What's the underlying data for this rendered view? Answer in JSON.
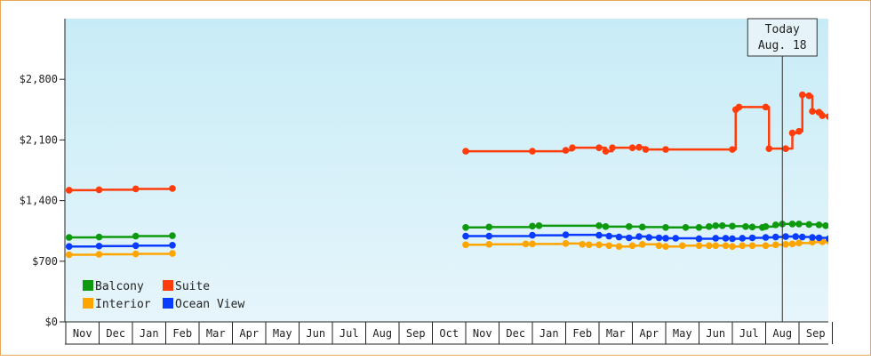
{
  "chart_data": {
    "type": "line",
    "title": "",
    "xlabel": "",
    "ylabel": "",
    "ylim": [
      0,
      3500
    ],
    "yticks": [
      0,
      700,
      1400,
      2100,
      2800
    ],
    "ytick_labels": [
      "$0",
      "$700",
      "$1,400",
      "$2,100",
      "$2,800"
    ],
    "x_labels": [
      "Nov",
      "Dec",
      "Jan",
      "Feb",
      "Mar",
      "Apr",
      "May",
      "Jun",
      "Jul",
      "Aug",
      "Sep",
      "Oct",
      "Nov",
      "Dec",
      "Jan",
      "Feb",
      "Mar",
      "Apr",
      "May",
      "Jun",
      "Jul",
      "Aug",
      "Sep"
    ],
    "today": {
      "line1": "Today",
      "line2": "Aug. 18",
      "x": 21.5
    },
    "grid": false,
    "legend_position": "bottom-left",
    "background_colors": [
      "#c8ecf7",
      "#e6f5fb"
    ],
    "series": [
      {
        "name": "Balcony",
        "color": "#0e9a0e",
        "segments": [
          [
            [
              0.1,
              975
            ],
            [
              1.0,
              980
            ],
            [
              2.1,
              990
            ],
            [
              3.2,
              995
            ]
          ],
          [
            [
              12.0,
              1090
            ],
            [
              12.7,
              1095
            ],
            [
              14.0,
              1105
            ],
            [
              14.2,
              1110
            ],
            [
              16.0,
              1110
            ],
            [
              16.2,
              1100
            ],
            [
              16.9,
              1100
            ],
            [
              17.3,
              1095
            ],
            [
              18.0,
              1090
            ],
            [
              18.6,
              1090
            ],
            [
              19.0,
              1090
            ],
            [
              19.3,
              1100
            ],
            [
              19.5,
              1110
            ],
            [
              19.7,
              1110
            ],
            [
              20.0,
              1105
            ],
            [
              20.4,
              1100
            ],
            [
              20.6,
              1095
            ],
            [
              20.9,
              1090
            ],
            [
              21.0,
              1100
            ],
            [
              21.3,
              1120
            ],
            [
              21.5,
              1130
            ],
            [
              21.8,
              1130
            ],
            [
              22.0,
              1130
            ],
            [
              22.3,
              1125
            ],
            [
              22.6,
              1120
            ],
            [
              22.8,
              1110
            ],
            [
              23.0,
              1085
            ],
            [
              23.3,
              1080
            ],
            [
              23.5,
              1080
            ]
          ]
        ],
        "projection": [
          [
            23.5,
            1080
          ],
          [
            25.0,
            1110
          ]
        ]
      },
      {
        "name": "Suite",
        "color": "#ff3c0a",
        "segments": [
          [
            [
              0.1,
              1520
            ],
            [
              1.0,
              1525
            ],
            [
              2.1,
              1535
            ],
            [
              3.2,
              1540
            ]
          ],
          [
            [
              12.0,
              1970
            ],
            [
              14.0,
              1970
            ],
            [
              15.0,
              1980
            ],
            [
              15.2,
              2010
            ],
            [
              16.0,
              2010
            ],
            [
              16.2,
              1970
            ],
            [
              16.4,
              2010
            ],
            [
              17.0,
              2010
            ],
            [
              17.2,
              2015
            ],
            [
              17.4,
              1990
            ],
            [
              18.0,
              1990
            ],
            [
              20.0,
              1990
            ],
            [
              20.1,
              2450
            ],
            [
              20.2,
              2480
            ],
            [
              21.0,
              2480
            ],
            [
              21.1,
              2000
            ],
            [
              21.6,
              2000
            ],
            [
              21.8,
              2180
            ],
            [
              22.0,
              2200
            ],
            [
              22.1,
              2620
            ],
            [
              22.3,
              2610
            ],
            [
              22.4,
              2430
            ],
            [
              22.6,
              2420
            ],
            [
              22.7,
              2380
            ],
            [
              22.9,
              2370
            ],
            [
              23.0,
              2380
            ]
          ]
        ],
        "projection": [
          [
            23.0,
            2380
          ],
          [
            25.0,
            2700
          ]
        ]
      },
      {
        "name": "Interior",
        "color": "#ffa500",
        "segments": [
          [
            [
              0.1,
              775
            ],
            [
              1.0,
              780
            ],
            [
              2.1,
              785
            ],
            [
              3.2,
              790
            ]
          ],
          [
            [
              12.0,
              890
            ],
            [
              12.7,
              895
            ],
            [
              13.8,
              900
            ],
            [
              14.0,
              900
            ],
            [
              15.0,
              905
            ],
            [
              15.5,
              895
            ],
            [
              15.7,
              890
            ],
            [
              16.0,
              890
            ],
            [
              16.3,
              880
            ],
            [
              16.6,
              870
            ],
            [
              17.0,
              880
            ],
            [
              17.3,
              895
            ],
            [
              17.8,
              880
            ],
            [
              18.0,
              870
            ],
            [
              18.5,
              880
            ],
            [
              19.0,
              880
            ],
            [
              19.3,
              880
            ],
            [
              19.5,
              880
            ],
            [
              19.8,
              880
            ],
            [
              20.0,
              870
            ],
            [
              20.3,
              880
            ],
            [
              20.6,
              880
            ],
            [
              21.0,
              880
            ],
            [
              21.3,
              890
            ],
            [
              21.6,
              895
            ],
            [
              21.8,
              900
            ],
            [
              22.0,
              910
            ],
            [
              22.4,
              920
            ],
            [
              22.7,
              925
            ],
            [
              22.9,
              930
            ],
            [
              23.0,
              935
            ]
          ]
        ],
        "projection": [
          [
            23.0,
            935
          ],
          [
            25.0,
            990
          ]
        ]
      },
      {
        "name": "Ocean View",
        "color": "#0a3cff",
        "segments": [
          [
            [
              0.1,
              870
            ],
            [
              1.0,
              875
            ],
            [
              2.1,
              880
            ],
            [
              3.2,
              885
            ]
          ],
          [
            [
              12.0,
              990
            ],
            [
              12.7,
              990
            ],
            [
              14.0,
              1000
            ],
            [
              15.0,
              1005
            ],
            [
              16.0,
              1000
            ],
            [
              16.3,
              990
            ],
            [
              16.6,
              980
            ],
            [
              16.9,
              970
            ],
            [
              17.2,
              985
            ],
            [
              17.5,
              975
            ],
            [
              17.8,
              970
            ],
            [
              18.0,
              965
            ],
            [
              18.3,
              965
            ],
            [
              19.0,
              960
            ],
            [
              19.5,
              965
            ],
            [
              19.8,
              965
            ],
            [
              20.0,
              960
            ],
            [
              20.3,
              965
            ],
            [
              20.6,
              970
            ],
            [
              21.0,
              975
            ],
            [
              21.3,
              980
            ],
            [
              21.6,
              985
            ],
            [
              21.9,
              985
            ],
            [
              22.1,
              980
            ],
            [
              22.4,
              975
            ],
            [
              22.6,
              970
            ],
            [
              22.9,
              960
            ],
            [
              23.1,
              960
            ],
            [
              23.3,
              965
            ]
          ]
        ],
        "projection": [
          [
            23.3,
            965
          ],
          [
            25.0,
            1000
          ]
        ]
      }
    ]
  }
}
